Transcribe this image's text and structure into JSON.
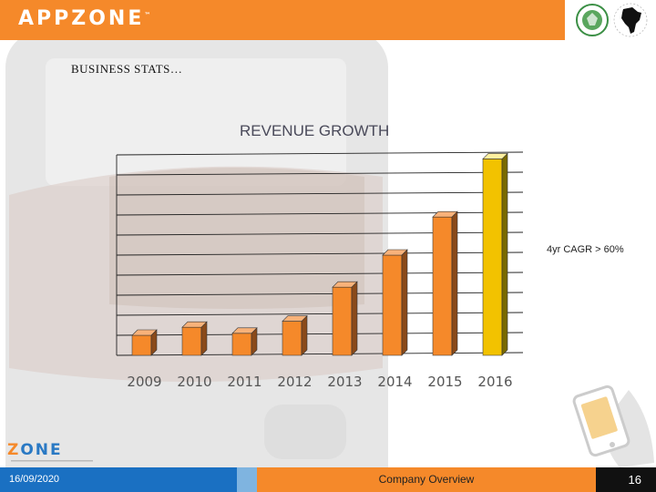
{
  "header": {
    "logo_text": "APPZONE",
    "trademark": "™"
  },
  "slide": {
    "section_label": "BUSINESS STATS…",
    "annotation": "4yr CAGR > 60%"
  },
  "chart_data": {
    "type": "bar",
    "title": "REVENUE GROWTH",
    "categories": [
      "2009",
      "2010",
      "2011",
      "2012",
      "2013",
      "2014",
      "2015",
      "2016"
    ],
    "values": [
      1.0,
      1.4,
      1.1,
      1.7,
      3.4,
      5.0,
      6.9,
      9.8
    ],
    "ylim": [
      0,
      10
    ],
    "grid": true,
    "xlabel": "",
    "ylabel": "",
    "colors": {
      "bar": "#f5892a",
      "highlight": "#f2c200",
      "highlight_index": 7
    }
  },
  "footer": {
    "date": "16/09/2020",
    "title": "Company Overview",
    "page_number": "16"
  },
  "brand_logo": {
    "z": "Z",
    "rest": "ONE"
  },
  "colors": {
    "accent": "#f5892a",
    "blue": "#1a70c2"
  }
}
